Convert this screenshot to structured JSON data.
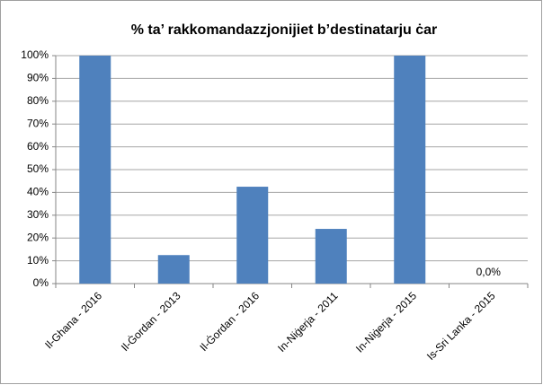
{
  "chart_data": {
    "type": "bar",
    "title": "% ta’ rakkomandazzjonijiet  b’destinatarju ċar",
    "categories": [
      "Il-Ghana - 2016",
      "Il-Ġordan - 2013",
      "Il-Ġordan - 2016",
      "In-Niġerja - 2011",
      "In-Niġerja - 2015",
      "Is-Sri Lanka - 2015"
    ],
    "values": [
      100,
      12.5,
      42.5,
      24,
      100,
      0
    ],
    "value_labels": [
      null,
      null,
      null,
      null,
      null,
      "0,0%"
    ],
    "color": "#4f81bd",
    "ylim": [
      0,
      100
    ],
    "yticks": [
      {
        "value": 0,
        "label": "0%"
      },
      {
        "value": 10,
        "label": "10%"
      },
      {
        "value": 20,
        "label": "20%"
      },
      {
        "value": 30,
        "label": "30%"
      },
      {
        "value": 40,
        "label": "40%"
      },
      {
        "value": 50,
        "label": "50%"
      },
      {
        "value": 60,
        "label": "60%"
      },
      {
        "value": 70,
        "label": "70%"
      },
      {
        "value": 80,
        "label": "80%"
      },
      {
        "value": 90,
        "label": "90%"
      },
      {
        "value": 100,
        "label": "100%"
      }
    ],
    "grid": true
  }
}
